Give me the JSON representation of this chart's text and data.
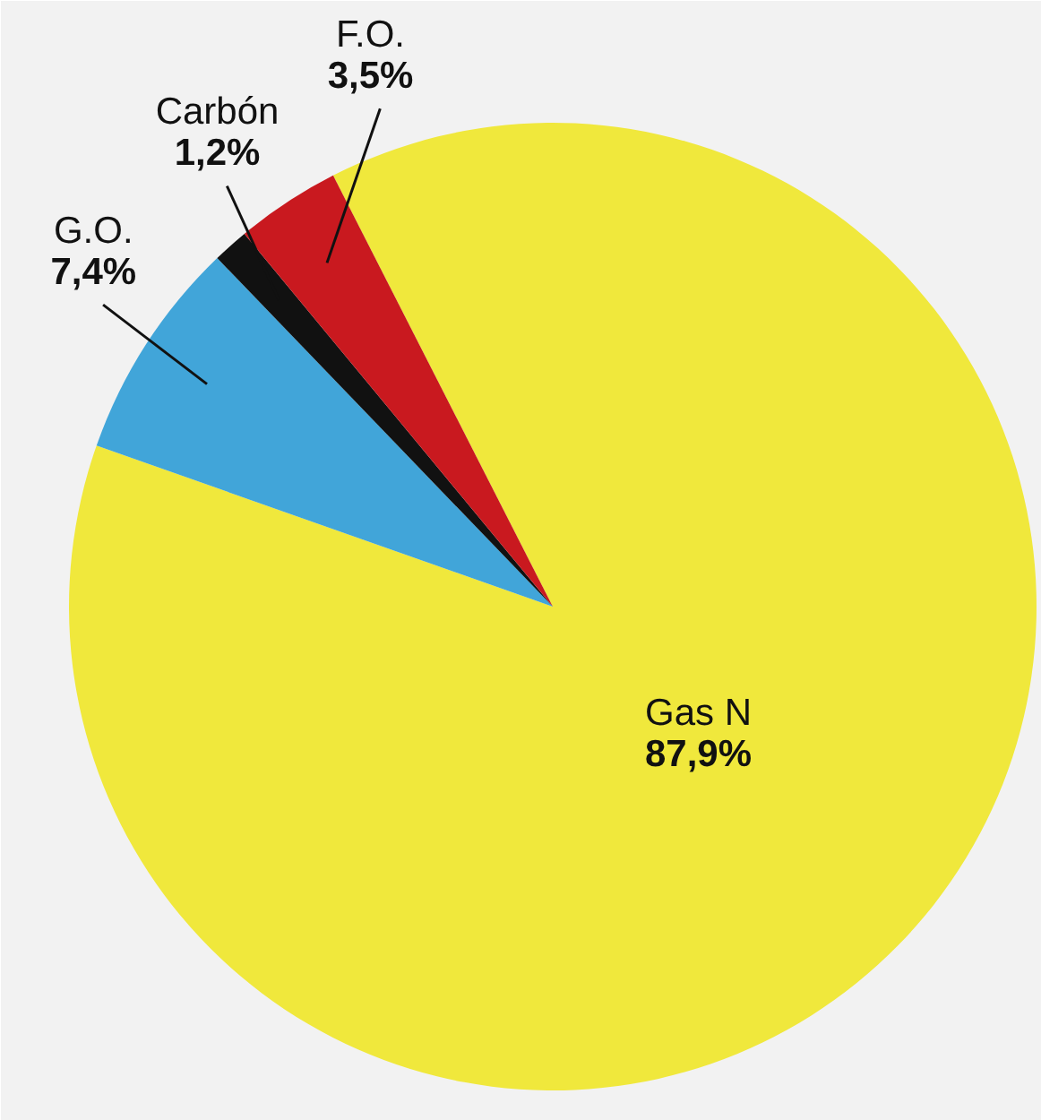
{
  "chart_data": {
    "type": "pie",
    "categories": [
      "Gas N",
      "G.O.",
      "Carbón",
      "F.O."
    ],
    "values": [
      87.9,
      7.4,
      1.2,
      3.5
    ],
    "value_labels": [
      "87,9%",
      "7,4%",
      "1,2%",
      "3,5%"
    ],
    "colors": [
      "#f0e83c",
      "#41a5d9",
      "#111111",
      "#c9191f"
    ]
  }
}
